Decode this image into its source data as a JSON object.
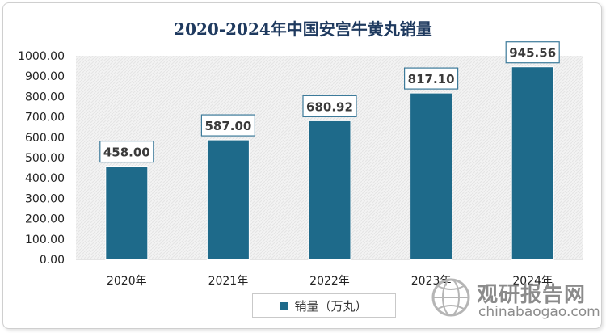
{
  "colors": {
    "bar": "#1e6a8a",
    "label_border": "#3c7a9a",
    "plot_bg": "#f0f0f0"
  },
  "chart_data": {
    "type": "bar",
    "title": "2020-2024年中国安宫牛黄丸销量",
    "categories": [
      "2020年",
      "2021年",
      "2022年",
      "2023年",
      "2024年"
    ],
    "series": [
      {
        "name": "销量（万丸）",
        "values": [
          458.0,
          587.0,
          680.92,
          817.1,
          945.56
        ]
      }
    ],
    "data_labels": [
      "458.00",
      "587.00",
      "680.92",
      "817.10",
      "945.56"
    ],
    "ylim": [
      0,
      1000
    ],
    "y_ticks": [
      "0.00",
      "100.00",
      "200.00",
      "300.00",
      "400.00",
      "500.00",
      "600.00",
      "700.00",
      "800.00",
      "900.00",
      "1000.00"
    ],
    "legend_position": "bottom",
    "grid": false
  },
  "watermark": {
    "name": "观研报告网",
    "url": "chinabaogao.com",
    "icon": "globe-logo-icon"
  }
}
